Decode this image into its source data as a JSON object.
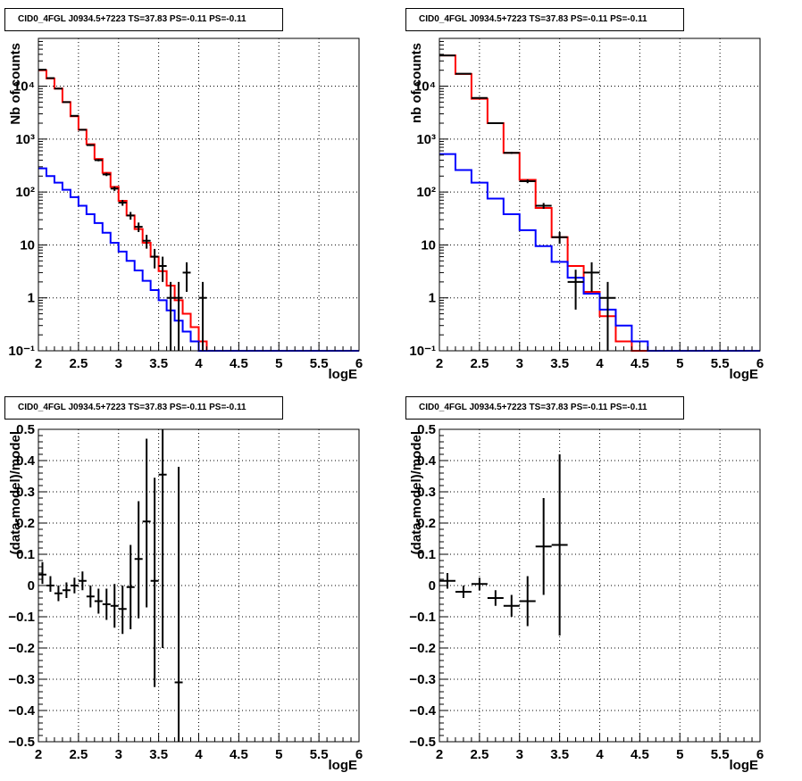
{
  "chart_data": [
    {
      "type": "line",
      "title": "CID0_4FGL J0934.5+7223 TS=37.83 PS=-0.11 PS=-0.11",
      "xlabel": "logE",
      "ylabel": "Nb of counts",
      "xlim": [
        2,
        6
      ],
      "ylim": [
        0.1,
        80000
      ],
      "yscale": "log",
      "grid": true,
      "x_ticks": [
        "2",
        "2.5",
        "3",
        "3.5",
        "4",
        "4.5",
        "5",
        "5.5",
        "6"
      ],
      "y_ticks": [
        "10⁻¹",
        "1",
        "10",
        "10²",
        "10³",
        "10⁴"
      ],
      "bin_edges": [
        2.0,
        2.1,
        2.2,
        2.3,
        2.4,
        2.5,
        2.6,
        2.7,
        2.8,
        2.9,
        3.0,
        3.1,
        3.2,
        3.3,
        3.4,
        3.5,
        3.6,
        3.7,
        3.8,
        3.9,
        4.0,
        4.1,
        4.2,
        4.3,
        4.4,
        4.5,
        4.6,
        4.7,
        4.8,
        4.9,
        5.0,
        5.1,
        5.2,
        5.3,
        5.4,
        5.5,
        5.6,
        5.7,
        5.8,
        5.9,
        6.0
      ],
      "series": [
        {
          "color": "#ff0000",
          "values": [
            20000,
            14000,
            9000,
            5000,
            2700,
            1500,
            800,
            420,
            230,
            125,
            68,
            36,
            20,
            11,
            6,
            3.2,
            1.7,
            0.9,
            0.5,
            0.28,
            0.15,
            0.09,
            0.09,
            0.09,
            0.09,
            0.09,
            0.09,
            0.09,
            0.09,
            0.09,
            0.09,
            0.09,
            0.09,
            0.09,
            0.09,
            0.09,
            0.09,
            0.09,
            0.09,
            0.09
          ]
        },
        {
          "color": "#0000ff",
          "values": [
            280,
            200,
            150,
            110,
            80,
            55,
            38,
            26,
            17,
            11,
            7.5,
            5,
            3.3,
            2.1,
            1.4,
            0.9,
            0.58,
            0.37,
            0.23,
            0.15,
            0.1,
            0.09,
            0.09,
            0.09,
            0.09,
            0.09,
            0.09,
            0.09,
            0.09,
            0.09,
            0.09,
            0.09,
            0.09,
            0.09,
            0.09,
            0.09,
            0.09,
            0.09,
            0.09,
            0.09
          ]
        }
      ],
      "points": [
        {
          "x": 2.05,
          "y": 20500,
          "lo": 20300,
          "hi": 20700
        },
        {
          "x": 2.15,
          "y": 14200,
          "lo": 14050,
          "hi": 14350
        },
        {
          "x": 2.25,
          "y": 9000,
          "lo": 8900,
          "hi": 9100
        },
        {
          "x": 2.35,
          "y": 5000,
          "lo": 4930,
          "hi": 5070
        },
        {
          "x": 2.45,
          "y": 2750,
          "lo": 2700,
          "hi": 2800
        },
        {
          "x": 2.55,
          "y": 1500,
          "lo": 1460,
          "hi": 1540
        },
        {
          "x": 2.65,
          "y": 770,
          "lo": 740,
          "hi": 800
        },
        {
          "x": 2.75,
          "y": 400,
          "lo": 380,
          "hi": 420
        },
        {
          "x": 2.85,
          "y": 215,
          "lo": 200,
          "hi": 230
        },
        {
          "x": 2.95,
          "y": 116,
          "lo": 105,
          "hi": 127
        },
        {
          "x": 3.05,
          "y": 63,
          "lo": 55,
          "hi": 71
        },
        {
          "x": 3.15,
          "y": 36,
          "lo": 30,
          "hi": 42
        },
        {
          "x": 3.25,
          "y": 22,
          "lo": 17.5,
          "hi": 26.5
        },
        {
          "x": 3.35,
          "y": 12,
          "lo": 8.5,
          "hi": 15.5
        },
        {
          "x": 3.45,
          "y": 6,
          "lo": 3.6,
          "hi": 8.4
        },
        {
          "x": 3.55,
          "y": 4,
          "lo": 2.0,
          "hi": 6.0
        },
        {
          "x": 3.65,
          "y": 1,
          "lo": 0.1,
          "hi": 2.0
        },
        {
          "x": 3.75,
          "y": 1,
          "lo": 0.1,
          "hi": 2.0
        },
        {
          "x": 3.85,
          "y": 3,
          "lo": 1.3,
          "hi": 4.7
        },
        {
          "x": 4.05,
          "y": 1,
          "lo": 0.1,
          "hi": 2.0
        }
      ]
    },
    {
      "type": "line",
      "title": "CID0_4FGL J0934.5+7223 TS=37.83 PS=-0.11 PS=-0.11",
      "xlabel": "logE",
      "ylabel": "nb of counts",
      "xlim": [
        2,
        6
      ],
      "ylim": [
        0.1,
        80000
      ],
      "yscale": "log",
      "grid": true,
      "x_ticks": [
        "2",
        "2.5",
        "3",
        "3.5",
        "4",
        "4.5",
        "5",
        "5.5",
        "6"
      ],
      "y_ticks": [
        "10⁻¹",
        "1",
        "10",
        "10²",
        "10³",
        "10⁴"
      ],
      "bin_edges": [
        2.0,
        2.2,
        2.4,
        2.6,
        2.8,
        3.0,
        3.2,
        3.4,
        3.6,
        3.8,
        4.0,
        4.2,
        4.4,
        4.6,
        4.8,
        5.0,
        5.2,
        5.4,
        5.6,
        5.8,
        6.0
      ],
      "series": [
        {
          "color": "#ff0000",
          "values": [
            38000,
            17000,
            5800,
            2000,
            550,
            170,
            50,
            14,
            4,
            1.3,
            0.45,
            0.15,
            0.09,
            0.09,
            0.09,
            0.09,
            0.09,
            0.09,
            0.09,
            0.09
          ]
        },
        {
          "color": "#0000ff",
          "values": [
            520,
            260,
            150,
            75,
            38,
            19,
            9.5,
            4.8,
            2.4,
            1.2,
            0.6,
            0.3,
            0.15,
            0.09,
            0.09,
            0.09,
            0.09,
            0.09,
            0.09,
            0.09
          ]
        }
      ],
      "points": [
        {
          "x": 2.1,
          "y": 38000,
          "lo": 37700,
          "hi": 38300
        },
        {
          "x": 2.3,
          "y": 17200,
          "lo": 17000,
          "hi": 17400
        },
        {
          "x": 2.5,
          "y": 6000,
          "lo": 5900,
          "hi": 6100
        },
        {
          "x": 2.7,
          "y": 2000,
          "lo": 1960,
          "hi": 2040
        },
        {
          "x": 2.9,
          "y": 550,
          "lo": 525,
          "hi": 575
        },
        {
          "x": 3.1,
          "y": 160,
          "lo": 147,
          "hi": 173
        },
        {
          "x": 3.3,
          "y": 55,
          "lo": 48,
          "hi": 62
        },
        {
          "x": 3.5,
          "y": 14,
          "lo": 10.5,
          "hi": 17.5
        },
        {
          "x": 3.7,
          "y": 2,
          "lo": 0.6,
          "hi": 3.4
        },
        {
          "x": 3.9,
          "y": 3,
          "lo": 1.3,
          "hi": 4.7
        },
        {
          "x": 4.1,
          "y": 1,
          "lo": 0.1,
          "hi": 2.0
        }
      ]
    },
    {
      "type": "scatter",
      "title": "CID0_4FGL J0934.5+7223 TS=37.83 PS=-0.11 PS=-0.11",
      "xlabel": "logE",
      "ylabel": "(data-model)/model",
      "xlim": [
        2,
        6
      ],
      "ylim": [
        -0.5,
        0.5
      ],
      "grid": true,
      "x_ticks": [
        "2",
        "2.5",
        "3",
        "3.5",
        "4",
        "4.5",
        "5",
        "5.5",
        "6"
      ],
      "y_ticks": [
        "−0.5",
        "−0.4",
        "−0.3",
        "−0.2",
        "−0.1",
        "0",
        "0.1",
        "0.2",
        "0.3",
        "0.4",
        "0.5"
      ],
      "half_width": 0.05,
      "points": [
        {
          "x": 2.05,
          "y": 0.035,
          "lo": 0.005,
          "hi": 0.075
        },
        {
          "x": 2.15,
          "y": 0.0,
          "lo": -0.02,
          "hi": 0.03
        },
        {
          "x": 2.25,
          "y": -0.025,
          "lo": -0.05,
          "hi": 0.0
        },
        {
          "x": 2.35,
          "y": -0.015,
          "lo": -0.04,
          "hi": 0.01
        },
        {
          "x": 2.45,
          "y": 0.0,
          "lo": -0.025,
          "hi": 0.025
        },
        {
          "x": 2.55,
          "y": 0.015,
          "lo": -0.015,
          "hi": 0.045
        },
        {
          "x": 2.65,
          "y": -0.035,
          "lo": -0.07,
          "hi": 0.0
        },
        {
          "x": 2.75,
          "y": -0.05,
          "lo": -0.09,
          "hi": -0.01
        },
        {
          "x": 2.85,
          "y": -0.06,
          "lo": -0.11,
          "hi": -0.01
        },
        {
          "x": 2.95,
          "y": -0.065,
          "lo": -0.135,
          "hi": 0.005
        },
        {
          "x": 3.05,
          "y": -0.075,
          "lo": -0.155,
          "hi": 0.0
        },
        {
          "x": 3.15,
          "y": -0.005,
          "lo": -0.14,
          "hi": 0.13
        },
        {
          "x": 3.25,
          "y": 0.085,
          "lo": -0.105,
          "hi": 0.27
        },
        {
          "x": 3.35,
          "y": 0.205,
          "lo": -0.07,
          "hi": 0.47
        },
        {
          "x": 3.45,
          "y": 0.015,
          "lo": -0.325,
          "hi": 0.345
        },
        {
          "x": 3.55,
          "y": 0.355,
          "lo": -0.2,
          "hi": 0.5
        },
        {
          "x": 3.75,
          "y": -0.31,
          "lo": -0.5,
          "hi": 0.38
        }
      ]
    },
    {
      "type": "scatter",
      "title": "CID0_4FGL J0934.5+7223 TS=37.83 PS=-0.11 PS=-0.11",
      "xlabel": "logE",
      "ylabel": "(data-model)/model",
      "xlim": [
        2,
        6
      ],
      "ylim": [
        -0.5,
        0.5
      ],
      "grid": true,
      "x_ticks": [
        "2",
        "2.5",
        "3",
        "3.5",
        "4",
        "4.5",
        "5",
        "5.5",
        "6"
      ],
      "y_ticks": [
        "−0.5",
        "−0.4",
        "−0.3",
        "−0.2",
        "−0.1",
        "0",
        "0.1",
        "0.2",
        "0.3",
        "0.4",
        "0.5"
      ],
      "half_width": 0.1,
      "points": [
        {
          "x": 2.1,
          "y": 0.015,
          "lo": -0.01,
          "hi": 0.04
        },
        {
          "x": 2.3,
          "y": -0.02,
          "lo": -0.04,
          "hi": 0.0
        },
        {
          "x": 2.5,
          "y": 0.005,
          "lo": -0.015,
          "hi": 0.025
        },
        {
          "x": 2.7,
          "y": -0.04,
          "lo": -0.065,
          "hi": -0.015
        },
        {
          "x": 2.9,
          "y": -0.065,
          "lo": -0.1,
          "hi": -0.03
        },
        {
          "x": 3.1,
          "y": -0.05,
          "lo": -0.13,
          "hi": 0.03
        },
        {
          "x": 3.3,
          "y": 0.125,
          "lo": -0.03,
          "hi": 0.28
        },
        {
          "x": 3.5,
          "y": 0.13,
          "lo": -0.16,
          "hi": 0.42
        }
      ]
    }
  ]
}
